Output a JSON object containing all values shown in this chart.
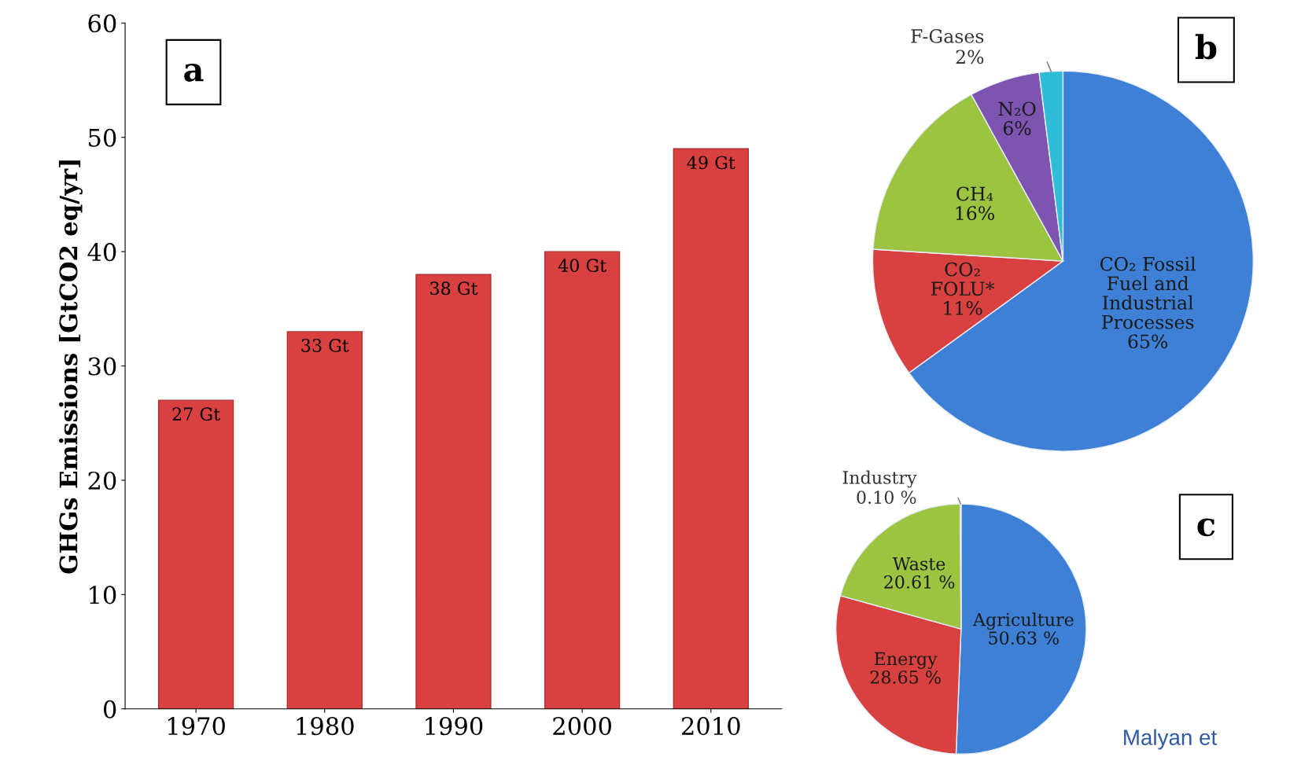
{
  "chart_data": [
    {
      "type": "bar",
      "title": "a",
      "ylabel": "GHGs Emissions [GtCO2 eq/yr]",
      "categories": [
        "1970",
        "1980",
        "1990",
        "2000",
        "2010"
      ],
      "values": [
        27,
        33,
        38,
        40,
        49
      ],
      "color": "#d94040",
      "value_labels": [
        "27 Gt",
        "33 Gt",
        "38 Gt",
        "40 Gt",
        "49 Gt"
      ],
      "ylim": [
        0,
        60
      ],
      "yticks": [
        0,
        10,
        20,
        30,
        40,
        50,
        60
      ]
    },
    {
      "type": "pie",
      "title": "b",
      "categories": [
        "CO₂ Fossil\nFuel and\nIndustrial\nProcesses",
        "CO₂\nFOLU*",
        "CH₄",
        "N₂O",
        "F-Gases"
      ],
      "values": [
        65,
        11,
        16,
        6,
        2
      ],
      "colors": [
        "#3d80d6",
        "#d94040",
        "#9cc440",
        "#7d55b0",
        "#2fbcd8"
      ],
      "value_labels": [
        "65%",
        "11%",
        "16%",
        "6%",
        "2%"
      ]
    },
    {
      "type": "pie",
      "title": "c",
      "categories": [
        "Agriculture",
        "Energy",
        "Waste",
        "Industry"
      ],
      "values": [
        50.63,
        28.65,
        20.61,
        0.1
      ],
      "colors": [
        "#3d80d6",
        "#d94040",
        "#9cc440",
        "#7d55b0"
      ],
      "value_labels": [
        "50.63 %",
        "28.65 %",
        "20.61 %",
        "0.10 %"
      ],
      "annotations": [
        "Malyan et"
      ]
    }
  ]
}
